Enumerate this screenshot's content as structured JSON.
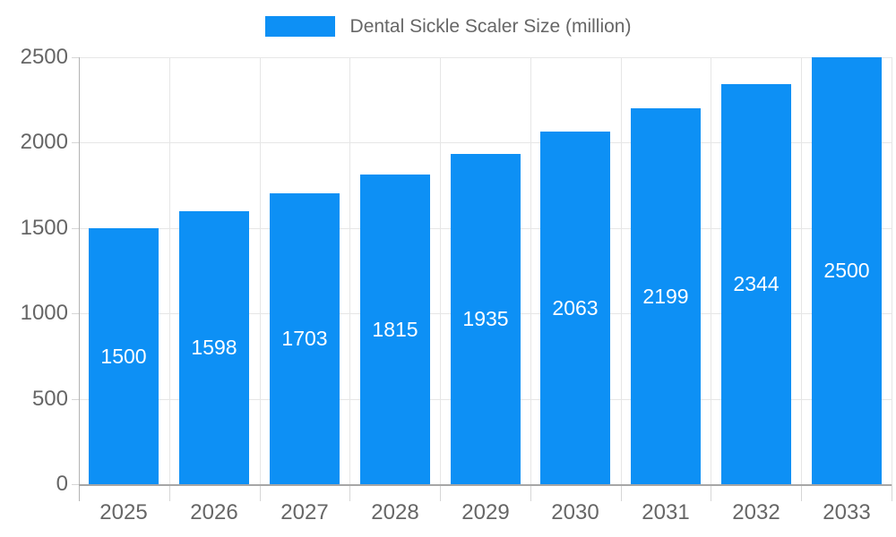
{
  "legend": {
    "series_label": "Dental Sickle Scaler Size (million)"
  },
  "chart_data": {
    "type": "bar",
    "title": "Dental Sickle Scaler Size (million)",
    "categories": [
      "2025",
      "2026",
      "2027",
      "2028",
      "2029",
      "2030",
      "2031",
      "2032",
      "2033"
    ],
    "values": [
      1500,
      1598,
      1703,
      1815,
      1935,
      2063,
      2199,
      2344,
      2500
    ],
    "value_labels": [
      "1500",
      "1598",
      "1703",
      "1815",
      "1935",
      "2063",
      "2199",
      "2344",
      "2500"
    ],
    "xlabel": "",
    "ylabel": "",
    "ylim": [
      0,
      2500
    ],
    "yticks": [
      0,
      500,
      1000,
      1500,
      2000,
      2500
    ],
    "grid": "both",
    "legend_position": "top",
    "bar_color": "#0d90f5",
    "value_label_color": "#ffffff",
    "axis_text_color": "#666666"
  }
}
